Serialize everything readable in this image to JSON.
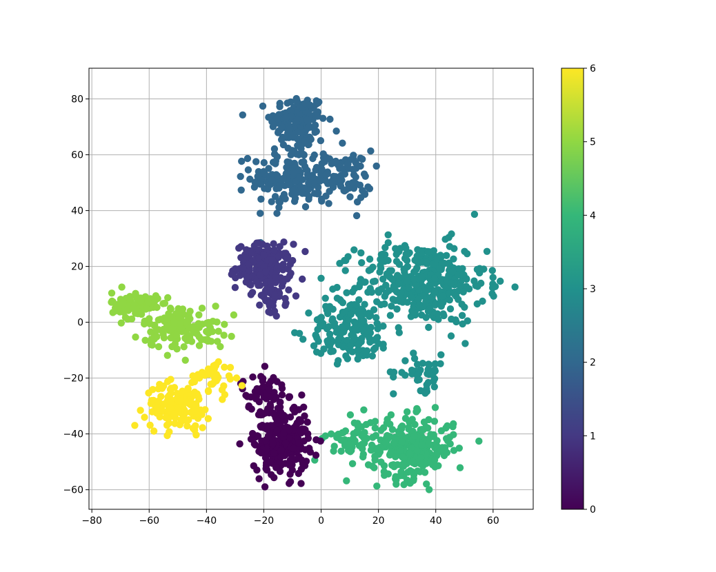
{
  "chart_data": {
    "type": "scatter",
    "title": "",
    "xlabel": "",
    "ylabel": "",
    "xlim": [
      -81,
      74
    ],
    "ylim": [
      -67,
      91
    ],
    "xticks": [
      -80,
      -60,
      -40,
      -20,
      0,
      20,
      40,
      60
    ],
    "yticks": [
      -60,
      -40,
      -20,
      0,
      20,
      40,
      60,
      80
    ],
    "xtick_labels": [
      "−80",
      "−60",
      "−40",
      "−20",
      "0",
      "20",
      "40",
      "60"
    ],
    "ytick_labels": [
      "−60",
      "−40",
      "−20",
      "0",
      "20",
      "40",
      "60",
      "80"
    ],
    "grid": true,
    "colormap": "viridis",
    "colorbar": {
      "range": [
        0,
        6
      ],
      "ticks": [
        0,
        1,
        2,
        3,
        4,
        5,
        6
      ],
      "tick_labels": [
        "0",
        "1",
        "2",
        "3",
        "4",
        "5",
        "6"
      ],
      "colors": [
        "#440154",
        "#443983",
        "#31688e",
        "#21918c",
        "#35b779",
        "#90d743",
        "#fde725"
      ]
    },
    "clusters": [
      {
        "label": 2,
        "center": [
          -8,
          72
        ],
        "spread": [
          6,
          6
        ],
        "count": 150
      },
      {
        "label": 2,
        "center": [
          -10,
          52
        ],
        "spread": [
          9,
          7
        ],
        "count": 180
      },
      {
        "label": 2,
        "center": [
          8,
          52
        ],
        "spread": [
          6,
          6
        ],
        "count": 70
      },
      {
        "label": 1,
        "center": [
          -20,
          20
        ],
        "spread": [
          6,
          5
        ],
        "count": 180
      },
      {
        "label": 1,
        "center": [
          -16,
          10
        ],
        "spread": [
          3,
          5
        ],
        "count": 40
      },
      {
        "label": 3,
        "center": [
          35,
          14
        ],
        "spread": [
          14,
          9
        ],
        "count": 380
      },
      {
        "label": 3,
        "center": [
          10,
          -3
        ],
        "spread": [
          9,
          7
        ],
        "count": 160
      },
      {
        "label": 3,
        "center": [
          35,
          -18
        ],
        "spread": [
          6,
          4
        ],
        "count": 40
      },
      {
        "label": 4,
        "center": [
          32,
          -45
        ],
        "spread": [
          9,
          7
        ],
        "count": 260
      },
      {
        "label": 4,
        "center": [
          12,
          -42
        ],
        "spread": [
          6,
          5
        ],
        "count": 60
      },
      {
        "label": 0,
        "center": [
          -14,
          -42
        ],
        "spread": [
          6,
          8
        ],
        "count": 260
      },
      {
        "label": 0,
        "center": [
          -20,
          -25
        ],
        "spread": [
          5,
          4
        ],
        "count": 50
      },
      {
        "label": 5,
        "center": [
          -65,
          6
        ],
        "spread": [
          5,
          3
        ],
        "count": 110
      },
      {
        "label": 5,
        "center": [
          -48,
          -2
        ],
        "spread": [
          9,
          5
        ],
        "count": 130
      },
      {
        "label": 6,
        "center": [
          -50,
          -30
        ],
        "spread": [
          7,
          5
        ],
        "count": 150
      },
      {
        "label": 6,
        "center": [
          -38,
          -20
        ],
        "spread": [
          5,
          4
        ],
        "count": 40
      }
    ]
  }
}
